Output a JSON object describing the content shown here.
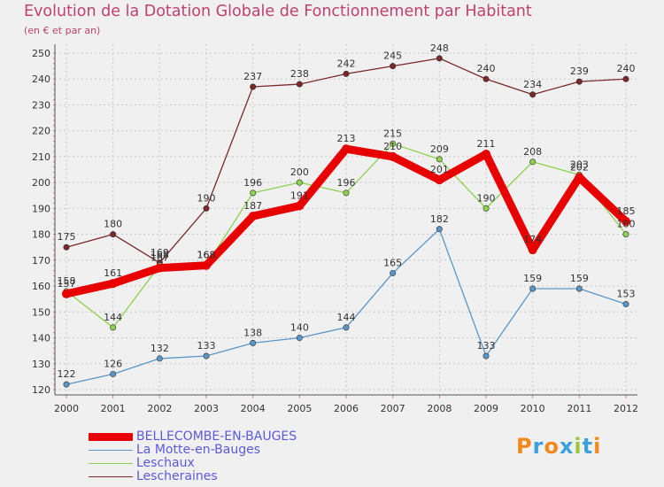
{
  "header": {
    "title": "Evolution de la Dotation Globale de Fonctionnement par Habitant",
    "subtitle": "(en € et par an)"
  },
  "logo": {
    "text": "Proxiti",
    "colors": [
      "#f08a1c",
      "#3ca0dc",
      "#f08a1c",
      "#3ca0dc",
      "#9ac83c",
      "#3ca0dc",
      "#f08a1c"
    ]
  },
  "chart_data": {
    "type": "line",
    "title": "Evolution de la Dotation Globale de Fonctionnement par Habitant",
    "ylabel": "(en € et par an)",
    "xlabel": "",
    "x": [
      "2000",
      "2001",
      "2002",
      "2003",
      "2004",
      "2005",
      "2006",
      "2007",
      "2008",
      "2009",
      "2010",
      "2011",
      "2012"
    ],
    "ylim": [
      120,
      250
    ],
    "yticks": [
      120,
      130,
      140,
      150,
      160,
      170,
      180,
      190,
      200,
      210,
      220,
      230,
      240,
      250
    ],
    "grid": true,
    "legend_position": "bottom-left",
    "series": [
      {
        "name": "Lescheraines",
        "color": "#7a2828",
        "weight": "thin",
        "values": [
          175,
          180,
          169,
          190,
          237,
          238,
          242,
          245,
          248,
          240,
          234,
          239,
          240
        ],
        "labels": [
          "175",
          "180",
          "169",
          "190",
          "237",
          "238",
          "242",
          "245",
          "248",
          "240",
          "234",
          "239",
          "240"
        ]
      },
      {
        "name": "La Motte-en-Bauges",
        "color": "#5a96c8",
        "weight": "thin",
        "values": [
          122,
          126,
          132,
          133,
          138,
          140,
          144,
          165,
          182,
          133,
          159,
          159,
          153
        ],
        "labels": [
          "122",
          "126",
          "132",
          "133",
          "138",
          "140",
          "144",
          "165",
          "182",
          "133",
          "159",
          "159",
          "153"
        ]
      },
      {
        "name": "Leschaux",
        "color": "#8cd250",
        "weight": "thin",
        "values": [
          158,
          144,
          168,
          168,
          196,
          200,
          196,
          215,
          209,
          190,
          208,
          203,
          180
        ],
        "labels": [
          "158",
          "144",
          "168",
          "168",
          "196",
          "200",
          "196",
          "215",
          "209",
          "190",
          "208",
          "203",
          "180"
        ]
      },
      {
        "name": "BELLECOMBE-EN-BAUGES",
        "color": "#e80000",
        "weight": "thick",
        "values": [
          157,
          161,
          167,
          168,
          187,
          191,
          213,
          210,
          201,
          211,
          174,
          202,
          185
        ],
        "labels": [
          "157",
          "161",
          "167",
          "168",
          "187",
          "191",
          "213",
          "210",
          "201",
          "211",
          "174",
          "202",
          "185"
        ]
      }
    ],
    "legend": [
      {
        "name": "BELLECOMBE-EN-BAUGES",
        "color": "#e80000"
      },
      {
        "name": "La Motte-en-Bauges",
        "color": "#5a96c8"
      },
      {
        "name": "Leschaux",
        "color": "#8cd250"
      },
      {
        "name": "Lescheraines",
        "color": "#7a2828"
      }
    ]
  }
}
